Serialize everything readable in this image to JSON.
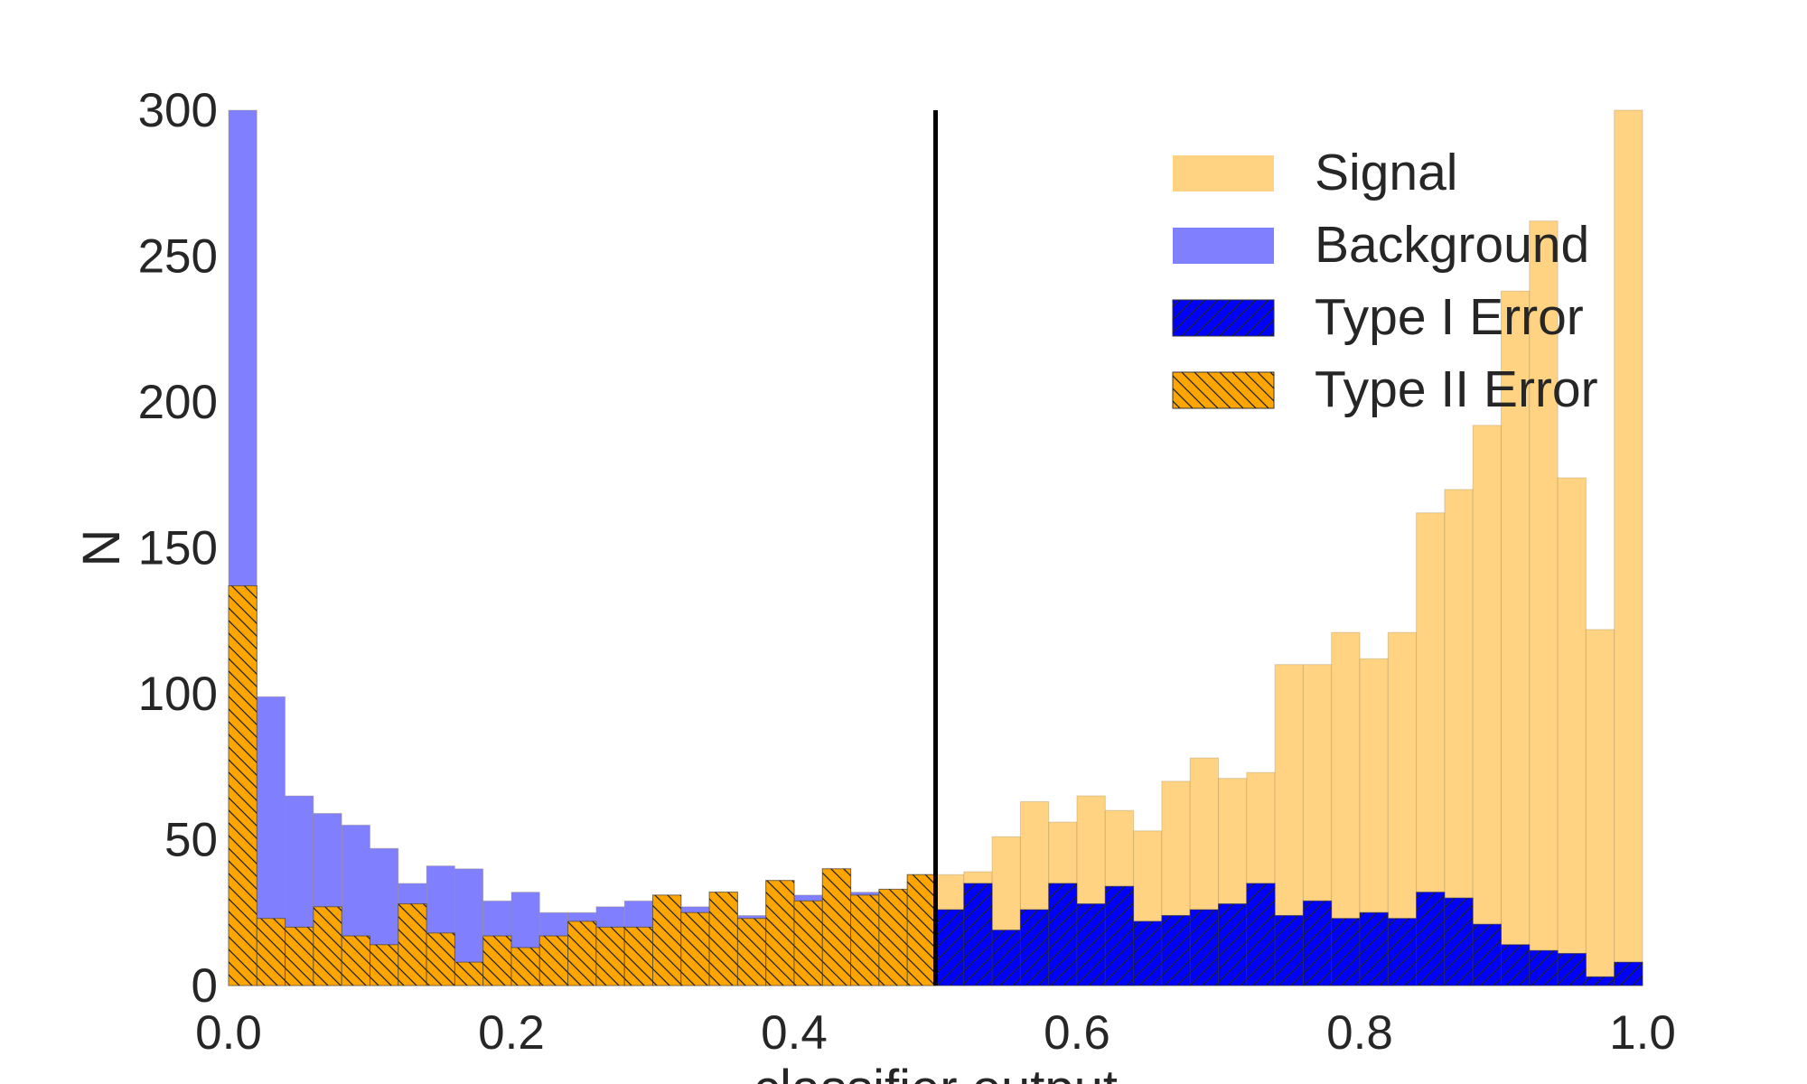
{
  "chart_data": {
    "type": "bar",
    "title": "",
    "xlabel": "classifier output",
    "ylabel": "N",
    "xlim": [
      0.0,
      1.0
    ],
    "ylim": [
      0,
      300
    ],
    "xticks": [
      "0.0",
      "0.2",
      "0.4",
      "0.6",
      "0.8",
      "1.0"
    ],
    "yticks": [
      "0",
      "50",
      "100",
      "150",
      "200",
      "250",
      "300"
    ],
    "grid": false,
    "legend_position": "top-right",
    "threshold": 0.5,
    "bin_count": 50,
    "bin_width": 0.02,
    "colors": {
      "signal": "#ffd381",
      "background": "#8080ff",
      "type1": "#0000ff",
      "type2": "#ffa500",
      "threshold_line": "#000000",
      "text": "#262626"
    },
    "series": [
      {
        "name": "Signal",
        "values": [
          137,
          23,
          20,
          27,
          17,
          14,
          28,
          18,
          8,
          17,
          13,
          17,
          22,
          20,
          20,
          31,
          25,
          32,
          23,
          36,
          29,
          40,
          31,
          33,
          38,
          38,
          39,
          51,
          63,
          56,
          65,
          60,
          53,
          70,
          78,
          71,
          73,
          110,
          110,
          121,
          112,
          121,
          162,
          170,
          192,
          238,
          262,
          174,
          122,
          302
        ]
      },
      {
        "name": "Background",
        "values": [
          302,
          99,
          65,
          59,
          55,
          47,
          35,
          41,
          40,
          29,
          32,
          25,
          25,
          27,
          29,
          30,
          27,
          32,
          24,
          36,
          31,
          40,
          32,
          33,
          38,
          26,
          35,
          19,
          26,
          35,
          28,
          34,
          22,
          24,
          26,
          28,
          35,
          24,
          29,
          23,
          25,
          23,
          32,
          30,
          21,
          14,
          12,
          11,
          3,
          8
        ]
      },
      {
        "name": "Type I Error",
        "values": [
          null,
          null,
          null,
          null,
          null,
          null,
          null,
          null,
          null,
          null,
          null,
          null,
          null,
          null,
          null,
          null,
          null,
          null,
          null,
          null,
          null,
          null,
          null,
          null,
          null,
          26,
          35,
          19,
          26,
          35,
          28,
          34,
          22,
          24,
          26,
          28,
          35,
          24,
          29,
          23,
          25,
          23,
          32,
          30,
          21,
          14,
          12,
          11,
          3,
          8
        ]
      },
      {
        "name": "Type II Error",
        "values": [
          137,
          23,
          20,
          27,
          17,
          14,
          28,
          18,
          8,
          17,
          13,
          17,
          22,
          20,
          20,
          31,
          25,
          32,
          23,
          36,
          29,
          40,
          31,
          33,
          38,
          null,
          null,
          null,
          null,
          null,
          null,
          null,
          null,
          null,
          null,
          null,
          null,
          null,
          null,
          null,
          null,
          null,
          null,
          null,
          null,
          null,
          null,
          null,
          null,
          null
        ]
      }
    ]
  }
}
